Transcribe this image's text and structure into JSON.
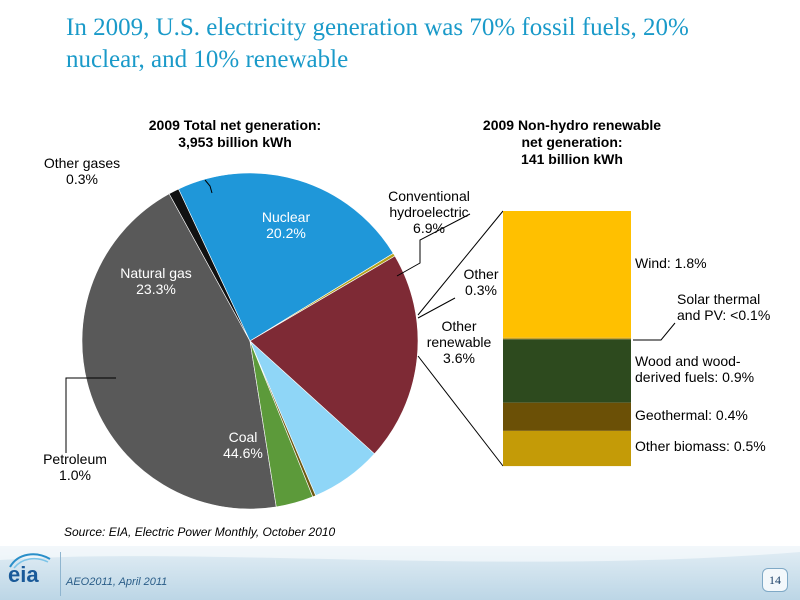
{
  "slide": {
    "title": "In 2009, U.S. electricity generation was 70% fossil fuels, 20% nuclear, and 10% renewable",
    "source": "Source:  EIA, Electric Power Monthly, October 2010",
    "footer_note": "AEO2011, April 2011",
    "page_number": "14",
    "logo_text": "eia"
  },
  "chart_data": [
    {
      "type": "pie",
      "title": "2009 Total net generation:",
      "subtitle": "3,953 billion kWh",
      "slices": [
        {
          "key": "coal",
          "label": "Coal",
          "value": 44.6,
          "value_label": "44.6%",
          "color": "#595959"
        },
        {
          "key": "petroleum",
          "label": "Petroleum",
          "value": 1.0,
          "value_label": "1.0%",
          "color": "#111111"
        },
        {
          "key": "natural_gas",
          "label": "Natural gas",
          "value": 23.3,
          "value_label": "23.3%",
          "color": "#1f97d9"
        },
        {
          "key": "other_gases",
          "label": "Other gases",
          "value": 0.3,
          "value_label": "0.3%",
          "color": "#b3a11a"
        },
        {
          "key": "nuclear",
          "label": "Nuclear",
          "value": 20.2,
          "value_label": "20.2%",
          "color": "#7e2a35"
        },
        {
          "key": "conventional_hydro",
          "label": "Conventional hydroelectric",
          "value": 6.9,
          "value_label": "6.9%",
          "color": "#8fd6f7"
        },
        {
          "key": "other",
          "label": "Other",
          "value": 0.3,
          "value_label": "0.3%",
          "color": "#6d5a14"
        },
        {
          "key": "other_renewable",
          "label": "Other renewable",
          "value": 3.6,
          "value_label": "3.6%",
          "color": "#5c9a3a"
        }
      ]
    },
    {
      "type": "bar",
      "stacked": true,
      "title": "2009 Non-hydro renewable",
      "subtitle": "net generation:",
      "subtitle2": "141 billion kWh",
      "segments": [
        {
          "key": "wind",
          "label": "Wind:  1.8%",
          "value": 1.8,
          "color": "#ffc000"
        },
        {
          "key": "solar",
          "label": "Solar thermal and PV: <0.1%",
          "label_lines": [
            "Solar thermal",
            "and PV: <0.1%"
          ],
          "value": 0.02,
          "color": "#c9a12a"
        },
        {
          "key": "wood",
          "label": "Wood and wood-derived fuels:  0.9%",
          "label_lines": [
            "Wood and wood-",
            "derived fuels:  0.9%"
          ],
          "value": 0.9,
          "color": "#2d4a1e"
        },
        {
          "key": "geothermal",
          "label": "Geothermal:  0.4%",
          "value": 0.4,
          "color": "#6b5006"
        },
        {
          "key": "other_biomass",
          "label": "Other biomass:  0.5%",
          "value": 0.5,
          "color": "#c49b07"
        }
      ]
    }
  ]
}
